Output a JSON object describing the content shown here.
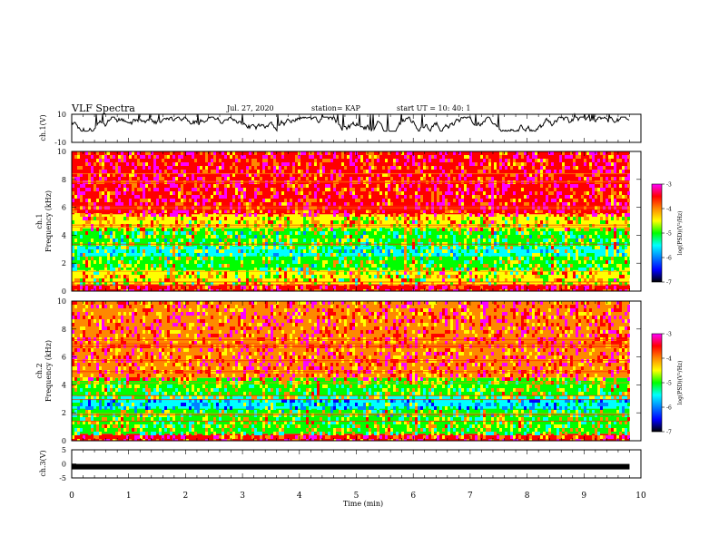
{
  "header": {
    "title": "VLF Spectra",
    "date": "Jul. 27, 2020",
    "station": "station= KAP",
    "start": "start  UT =   10: 40: 1"
  },
  "panels": {
    "ch1_wave_label": "ch.1(V)",
    "ch1_spec_label": "ch.1",
    "ch2_spec_label": "ch.2",
    "freq_label": "Frequency (kHz)",
    "ch3_label": "ch.3(V)",
    "xlabel": "Time (min)"
  },
  "colorbar": {
    "label": "log(PSD)(V²/Hz)",
    "ticks": [
      "-3",
      "-4",
      "-5",
      "-6",
      "-7"
    ],
    "colors": [
      "#ff00ff",
      "#ff0000",
      "#ff8800",
      "#ffff00",
      "#00ff00",
      "#00ffff",
      "#0080ff",
      "#0000ff",
      "#000000"
    ]
  },
  "chart_data": [
    {
      "type": "line",
      "name": "ch.1 waveform",
      "ylabel": "ch.1(V)",
      "ylim": [
        -10,
        10
      ],
      "yticks": [
        "10",
        "-10"
      ],
      "xlim": [
        0,
        10
      ],
      "x_extent_min": 9.8,
      "approx_range": [
        -2,
        8
      ]
    },
    {
      "type": "heatmap",
      "name": "ch.1 spectrogram",
      "xlabel": "",
      "ylabel": "Frequency (kHz)",
      "ylim": [
        0,
        10
      ],
      "yticks": [
        "0",
        "2",
        "4",
        "6",
        "8",
        "10"
      ],
      "x_extent_min": 9.8,
      "zlim": [
        -7,
        -3
      ],
      "bands": [
        {
          "f": [
            0,
            0.5
          ],
          "level": -3.5
        },
        {
          "f": [
            0.5,
            1.5
          ],
          "level": -4.5
        },
        {
          "f": [
            1.5,
            2.5
          ],
          "level": -4.9
        },
        {
          "f": [
            2.5,
            3.2
          ],
          "level": -5.3
        },
        {
          "f": [
            3.2,
            4.5
          ],
          "level": -5.0
        },
        {
          "f": [
            4.5,
            5.5
          ],
          "level": -4.4
        },
        {
          "f": [
            5.5,
            10
          ],
          "level": -3.6
        }
      ]
    },
    {
      "type": "heatmap",
      "name": "ch.2 spectrogram",
      "xlabel": "",
      "ylabel": "Frequency (kHz)",
      "ylim": [
        0,
        10
      ],
      "yticks": [
        "0",
        "2",
        "4",
        "6",
        "8",
        "10"
      ],
      "x_extent_min": 9.8,
      "zlim": [
        -7,
        -3
      ],
      "bands": [
        {
          "f": [
            0,
            0.5
          ],
          "level": -3.6
        },
        {
          "f": [
            0.5,
            1.8
          ],
          "level": -4.8
        },
        {
          "f": [
            1.8,
            2.3
          ],
          "level": -5.0
        },
        {
          "f": [
            2.3,
            3.2
          ],
          "level": -5.7
        },
        {
          "f": [
            3.2,
            4.5
          ],
          "level": -4.8
        },
        {
          "f": [
            4.5,
            10
          ],
          "level": -3.8
        }
      ]
    },
    {
      "type": "line",
      "name": "ch.3 waveform",
      "ylabel": "ch.3(V)",
      "ylim": [
        -5,
        5
      ],
      "yticks": [
        "5",
        "0",
        "-5"
      ],
      "xlabel": "Time (min)",
      "xlim": [
        0,
        10
      ],
      "xticks": [
        "0",
        "1",
        "2",
        "3",
        "4",
        "5",
        "6",
        "7",
        "8",
        "9",
        "10"
      ],
      "x_extent_min": 9.8,
      "approx_level": -1
    }
  ]
}
